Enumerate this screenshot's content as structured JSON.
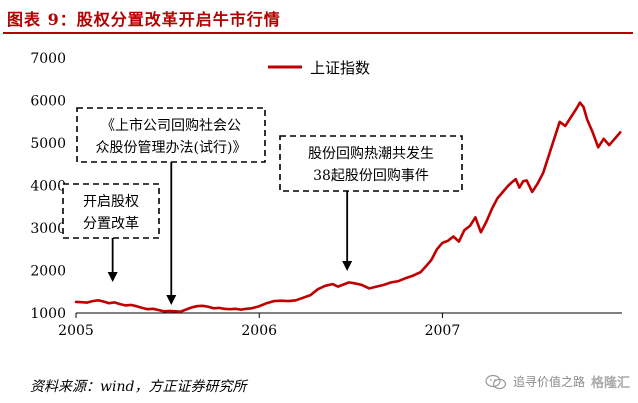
{
  "figure": {
    "title": "图表 9：股权分置改革开启牛市行情",
    "source": "资料来源：wind，方正证券研究所",
    "watermark_account": "追寻价值之路",
    "watermark_logo": "格隆汇"
  },
  "colors": {
    "accent": "#b40000",
    "line": "#c00000",
    "box_border": "#000000"
  },
  "annotations": [
    {
      "id": "reform-start",
      "lines": [
        "开启股权",
        "分置改革"
      ],
      "target_date": 2005.2
    },
    {
      "id": "buyback-rules",
      "lines": [
        "《上市公司回购社会公",
        "众股份管理办法(试行)》"
      ],
      "target_date": 2005.52
    },
    {
      "id": "buyback-events",
      "lines": [
        "股份回购热潮共发生",
        "38起股份回购事件"
      ],
      "target_date": 2006.48
    }
  ],
  "chart_data": {
    "type": "line",
    "title": "",
    "xlabel": "",
    "ylabel": "",
    "xlim": [
      2005,
      2007.98
    ],
    "ylim": [
      1000,
      7000
    ],
    "x_ticks": [
      2005,
      2006,
      2007
    ],
    "x_tick_labels": [
      "2005",
      "2006",
      "2007"
    ],
    "y_ticks": [
      1000,
      2000,
      3000,
      4000,
      5000,
      6000,
      7000
    ],
    "y_tick_labels": [
      "1000",
      "2000",
      "3000",
      "4000",
      "5000",
      "6000",
      "7000"
    ],
    "grid": false,
    "legend_position": "top-center",
    "series": [
      {
        "name": "上证指数",
        "x": [
          2005.0,
          2005.03,
          2005.06,
          2005.09,
          2005.12,
          2005.15,
          2005.18,
          2005.21,
          2005.24,
          2005.27,
          2005.3,
          2005.33,
          2005.36,
          2005.39,
          2005.42,
          2005.45,
          2005.48,
          2005.51,
          2005.54,
          2005.57,
          2005.6,
          2005.63,
          2005.66,
          2005.69,
          2005.72,
          2005.75,
          2005.78,
          2005.81,
          2005.84,
          2005.87,
          2005.9,
          2005.93,
          2005.96,
          2006.0,
          2006.04,
          2006.08,
          2006.12,
          2006.16,
          2006.2,
          2006.24,
          2006.28,
          2006.32,
          2006.36,
          2006.4,
          2006.43,
          2006.46,
          2006.49,
          2006.52,
          2006.56,
          2006.6,
          2006.64,
          2006.68,
          2006.72,
          2006.76,
          2006.8,
          2006.84,
          2006.88,
          2006.91,
          2006.94,
          2006.97,
          2007.0,
          2007.03,
          2007.06,
          2007.09,
          2007.12,
          2007.15,
          2007.18,
          2007.21,
          2007.24,
          2007.27,
          2007.3,
          2007.33,
          2007.36,
          2007.38,
          2007.4,
          2007.42,
          2007.44,
          2007.46,
          2007.49,
          2007.52,
          2007.55,
          2007.58,
          2007.61,
          2007.64,
          2007.67,
          2007.7,
          2007.73,
          2007.75,
          2007.77,
          2007.79,
          2007.82,
          2007.85,
          2007.88,
          2007.91,
          2007.94,
          2007.97
        ],
        "values": [
          1260,
          1255,
          1245,
          1280,
          1300,
          1270,
          1230,
          1250,
          1210,
          1180,
          1190,
          1160,
          1120,
          1090,
          1100,
          1070,
          1040,
          1050,
          1040,
          1030,
          1080,
          1130,
          1160,
          1170,
          1150,
          1110,
          1120,
          1100,
          1090,
          1100,
          1080,
          1100,
          1110,
          1160,
          1230,
          1280,
          1290,
          1280,
          1300,
          1360,
          1420,
          1560,
          1640,
          1680,
          1620,
          1670,
          1720,
          1700,
          1660,
          1580,
          1620,
          1660,
          1720,
          1750,
          1820,
          1880,
          1960,
          2100,
          2250,
          2500,
          2650,
          2700,
          2800,
          2680,
          2950,
          3050,
          3250,
          2900,
          3150,
          3450,
          3700,
          3850,
          4000,
          4080,
          4150,
          3950,
          4100,
          4120,
          3850,
          4050,
          4300,
          4700,
          5100,
          5500,
          5400,
          5600,
          5800,
          5950,
          5850,
          5550,
          5250,
          4900,
          5100,
          4950,
          5100,
          5250
        ]
      }
    ]
  }
}
